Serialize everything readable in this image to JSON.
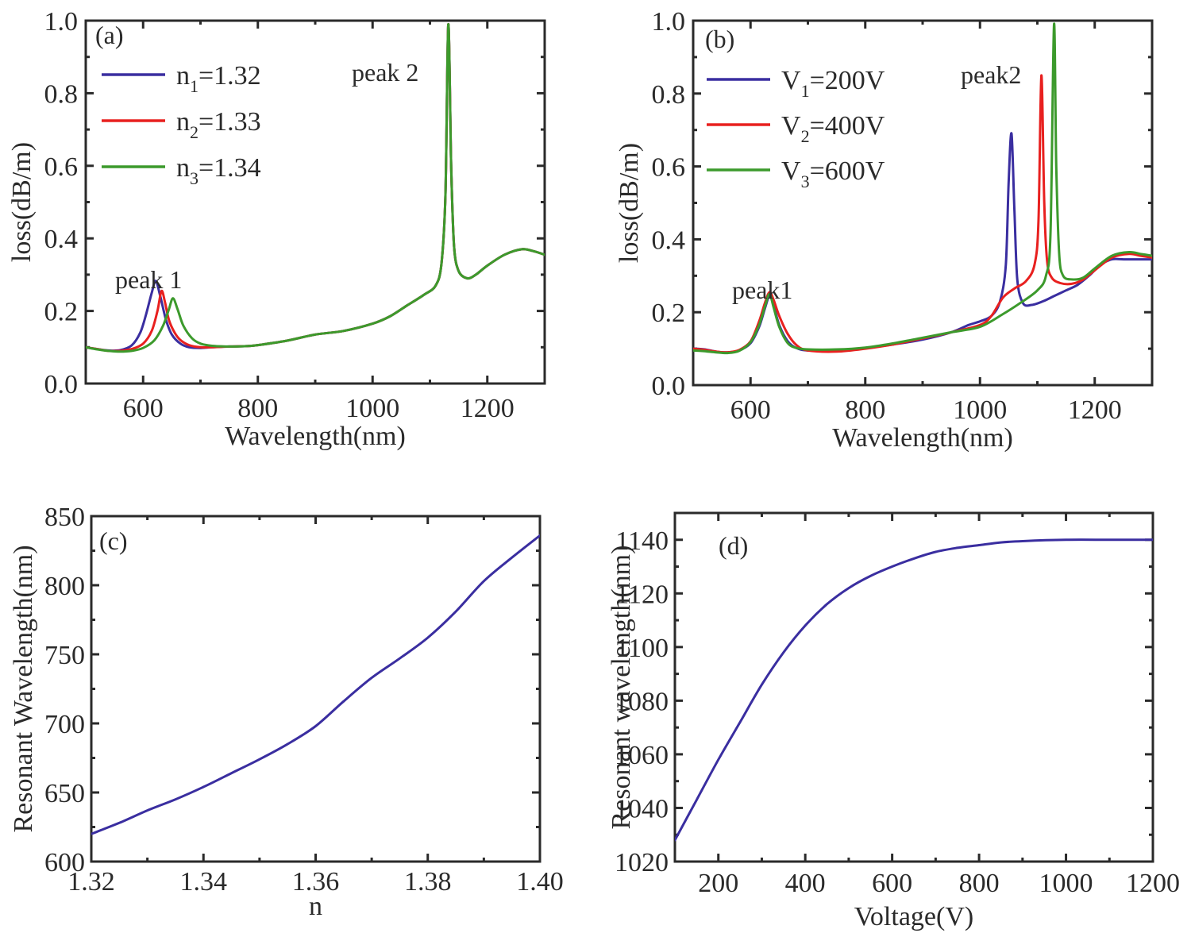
{
  "chart_data": [
    {
      "id": "a",
      "type": "line",
      "panel_label": "(a)",
      "xlabel": "Wavelength(nm)",
      "ylabel": "loss(dB/m)",
      "xlim": [
        500,
        1300
      ],
      "ylim": [
        0.0,
        1.0
      ],
      "xticks": [
        600,
        800,
        1000,
        1200
      ],
      "xtick_labels": [
        "600",
        "800",
        "1000",
        "1200"
      ],
      "yticks": [
        0.0,
        0.2,
        0.4,
        0.6,
        0.8,
        1.0
      ],
      "ytick_labels": [
        "0.0",
        "0.2",
        "0.4",
        "0.6",
        "0.8",
        "1.0"
      ],
      "legend_position": "top-left",
      "annotations": [
        {
          "text": "peak 1",
          "x": 625,
          "y": 0.34
        },
        {
          "text": "peak 2",
          "x": 1020,
          "y": 0.89
        }
      ],
      "series": [
        {
          "name": "n1=1.32",
          "base": "n",
          "sub": "1",
          "value": "=1.32",
          "color": "#3a2ea0",
          "x": [
            500,
            520,
            540,
            560,
            580,
            595,
            605,
            615,
            622,
            630,
            640,
            650,
            665,
            680,
            700,
            720,
            750,
            780,
            800,
            850,
            900,
            950,
            1000,
            1030,
            1060,
            1090,
            1110,
            1120,
            1127,
            1132,
            1137,
            1142,
            1150,
            1165,
            1180,
            1200,
            1230,
            1260,
            1280,
            1300
          ],
          "y": [
            0.1,
            0.095,
            0.091,
            0.092,
            0.105,
            0.14,
            0.19,
            0.25,
            0.283,
            0.24,
            0.175,
            0.135,
            0.11,
            0.1,
            0.098,
            0.1,
            0.102,
            0.103,
            0.106,
            0.118,
            0.135,
            0.145,
            0.165,
            0.185,
            0.215,
            0.245,
            0.27,
            0.33,
            0.52,
            0.99,
            0.6,
            0.38,
            0.31,
            0.29,
            0.3,
            0.325,
            0.355,
            0.37,
            0.365,
            0.355
          ]
        },
        {
          "name": "n2=1.33",
          "base": "n",
          "sub": "2",
          "value": "=1.33",
          "color": "#e8201f",
          "x": [
            500,
            520,
            540,
            560,
            580,
            600,
            615,
            625,
            632,
            638,
            645,
            655,
            665,
            680,
            700,
            720,
            750,
            780,
            800,
            850,
            900,
            950,
            1000,
            1030,
            1060,
            1090,
            1110,
            1120,
            1127,
            1132,
            1137,
            1142,
            1150,
            1165,
            1180,
            1200,
            1230,
            1260,
            1280,
            1300
          ],
          "y": [
            0.1,
            0.095,
            0.09,
            0.09,
            0.095,
            0.11,
            0.145,
            0.2,
            0.255,
            0.225,
            0.175,
            0.14,
            0.12,
            0.106,
            0.1,
            0.1,
            0.102,
            0.103,
            0.106,
            0.118,
            0.135,
            0.145,
            0.165,
            0.185,
            0.215,
            0.245,
            0.27,
            0.33,
            0.52,
            0.99,
            0.6,
            0.38,
            0.31,
            0.29,
            0.3,
            0.325,
            0.355,
            0.37,
            0.365,
            0.355
          ]
        },
        {
          "name": "n3=1.34",
          "base": "n",
          "sub": "3",
          "value": "=1.34",
          "color": "#3c9a2c",
          "x": [
            500,
            520,
            540,
            560,
            580,
            600,
            620,
            635,
            645,
            652,
            660,
            670,
            685,
            700,
            720,
            750,
            780,
            800,
            850,
            900,
            950,
            1000,
            1030,
            1060,
            1090,
            1110,
            1120,
            1127,
            1132,
            1137,
            1142,
            1150,
            1165,
            1180,
            1200,
            1230,
            1260,
            1280,
            1300
          ],
          "y": [
            0.1,
            0.094,
            0.09,
            0.088,
            0.09,
            0.098,
            0.12,
            0.16,
            0.205,
            0.235,
            0.205,
            0.16,
            0.125,
            0.11,
            0.104,
            0.102,
            0.103,
            0.106,
            0.118,
            0.135,
            0.145,
            0.165,
            0.185,
            0.215,
            0.245,
            0.27,
            0.33,
            0.52,
            0.99,
            0.6,
            0.38,
            0.31,
            0.29,
            0.3,
            0.325,
            0.355,
            0.37,
            0.365,
            0.355
          ]
        }
      ]
    },
    {
      "id": "b",
      "type": "line",
      "panel_label": "(b)",
      "xlabel": "Wavelength(nm)",
      "ylabel": "loss(dB/m)",
      "xlim": [
        500,
        1300
      ],
      "ylim": [
        0.0,
        1.0
      ],
      "xticks": [
        600,
        800,
        1000,
        1200
      ],
      "xtick_labels": [
        "600",
        "800",
        "1000",
        "1200"
      ],
      "yticks": [
        0.0,
        0.2,
        0.4,
        0.6,
        0.8,
        1.0
      ],
      "ytick_labels": [
        "0.0",
        "0.2",
        "0.4",
        "0.6",
        "0.8",
        "1.0"
      ],
      "legend_position": "top-left",
      "annotations": [
        {
          "text": "peak1",
          "x": 640,
          "y": 0.33
        },
        {
          "text": "peak2",
          "x": 1060,
          "y": 0.89
        }
      ],
      "series": [
        {
          "name": "V1=200V",
          "base": "V",
          "sub": "1",
          "value": "=200V",
          "color": "#3a2ea0",
          "x": [
            500,
            520,
            540,
            560,
            580,
            600,
            615,
            625,
            633,
            640,
            650,
            665,
            680,
            700,
            750,
            800,
            850,
            900,
            950,
            980,
            1000,
            1020,
            1035,
            1045,
            1050,
            1055,
            1060,
            1065,
            1075,
            1090,
            1110,
            1130,
            1150,
            1170,
            1190,
            1210,
            1230,
            1250,
            1270,
            1300
          ],
          "y": [
            0.1,
            0.098,
            0.092,
            0.09,
            0.095,
            0.115,
            0.16,
            0.21,
            0.245,
            0.22,
            0.165,
            0.12,
            0.102,
            0.095,
            0.095,
            0.102,
            0.112,
            0.125,
            0.145,
            0.165,
            0.175,
            0.19,
            0.23,
            0.33,
            0.56,
            0.69,
            0.48,
            0.29,
            0.225,
            0.22,
            0.23,
            0.245,
            0.26,
            0.275,
            0.3,
            0.33,
            0.345,
            0.345,
            0.345,
            0.345
          ]
        },
        {
          "name": "V2=400V",
          "base": "V",
          "sub": "2",
          "value": "=400V",
          "color": "#e8201f",
          "x": [
            500,
            520,
            540,
            560,
            580,
            600,
            615,
            625,
            633,
            640,
            650,
            665,
            680,
            700,
            750,
            800,
            850,
            900,
            950,
            1000,
            1020,
            1040,
            1060,
            1080,
            1095,
            1102,
            1107,
            1112,
            1117,
            1125,
            1140,
            1160,
            1180,
            1200,
            1230,
            1260,
            1280,
            1300
          ],
          "y": [
            0.1,
            0.097,
            0.092,
            0.09,
            0.096,
            0.12,
            0.175,
            0.225,
            0.255,
            0.235,
            0.19,
            0.14,
            0.11,
            0.095,
            0.092,
            0.1,
            0.112,
            0.128,
            0.145,
            0.165,
            0.19,
            0.24,
            0.265,
            0.285,
            0.33,
            0.45,
            0.85,
            0.5,
            0.34,
            0.295,
            0.28,
            0.278,
            0.29,
            0.315,
            0.35,
            0.36,
            0.355,
            0.35
          ]
        },
        {
          "name": "V3=600V",
          "base": "V",
          "sub": "3",
          "value": "=600V",
          "color": "#3c9a2c",
          "x": [
            500,
            520,
            540,
            560,
            580,
            600,
            615,
            625,
            633,
            640,
            650,
            665,
            680,
            700,
            750,
            800,
            850,
            900,
            950,
            1000,
            1040,
            1070,
            1100,
            1115,
            1123,
            1129,
            1133,
            1138,
            1145,
            1160,
            1180,
            1200,
            1230,
            1260,
            1280,
            1300
          ],
          "y": [
            0.095,
            0.093,
            0.09,
            0.088,
            0.094,
            0.118,
            0.165,
            0.215,
            0.25,
            0.215,
            0.16,
            0.115,
            0.102,
            0.098,
            0.098,
            0.103,
            0.115,
            0.13,
            0.145,
            0.16,
            0.195,
            0.225,
            0.26,
            0.3,
            0.42,
            0.99,
            0.6,
            0.36,
            0.3,
            0.29,
            0.295,
            0.32,
            0.355,
            0.365,
            0.36,
            0.355
          ]
        }
      ]
    },
    {
      "id": "c",
      "type": "line",
      "panel_label": "(c)",
      "xlabel": "n",
      "ylabel": "Resonant Wavelength(nm)",
      "xlim": [
        1.32,
        1.4
      ],
      "ylim": [
        600,
        850
      ],
      "xticks": [
        1.32,
        1.34,
        1.36,
        1.38,
        1.4
      ],
      "xtick_labels": [
        "1.32",
        "1.34",
        "1.36",
        "1.38",
        "1.40"
      ],
      "yticks": [
        600,
        650,
        700,
        750,
        800,
        850
      ],
      "ytick_labels": [
        "600",
        "650",
        "700",
        "750",
        "800",
        "850"
      ],
      "series": [
        {
          "name": "resonant wavelength",
          "color": "#3a2ea0",
          "x": [
            1.32,
            1.325,
            1.33,
            1.335,
            1.34,
            1.345,
            1.35,
            1.355,
            1.36,
            1.365,
            1.37,
            1.375,
            1.38,
            1.385,
            1.39,
            1.395,
            1.4
          ],
          "y": [
            620,
            628,
            637,
            645,
            654,
            664,
            674,
            685,
            698,
            716,
            733,
            747,
            762,
            781,
            803,
            820,
            836
          ]
        }
      ]
    },
    {
      "id": "d",
      "type": "line",
      "panel_label": "(d)",
      "xlabel": "Voltage(V)",
      "ylabel": "Resonant wavelength(nm)",
      "xlim": [
        100,
        1200
      ],
      "ylim": [
        1020,
        1150
      ],
      "xticks": [
        200,
        400,
        600,
        800,
        1000,
        1200
      ],
      "xtick_labels": [
        "200",
        "400",
        "600",
        "800",
        "1000",
        "1200"
      ],
      "yticks": [
        1020,
        1040,
        1060,
        1080,
        1100,
        1120,
        1140
      ],
      "ytick_labels": [
        "1020",
        "1040",
        "1060",
        "1080",
        "1100",
        "1120",
        "1140"
      ],
      "series": [
        {
          "name": "resonant wavelength",
          "color": "#3a2ea0",
          "x": [
            100,
            150,
            200,
            250,
            300,
            350,
            400,
            450,
            500,
            550,
            600,
            650,
            700,
            750,
            800,
            850,
            900,
            1000,
            1100,
            1200
          ],
          "y": [
            1028,
            1043,
            1058,
            1072,
            1086,
            1098,
            1108,
            1116,
            1122,
            1126.5,
            1130,
            1133,
            1135.5,
            1137,
            1138,
            1139,
            1139.5,
            1140,
            1140,
            1140
          ]
        }
      ]
    }
  ]
}
